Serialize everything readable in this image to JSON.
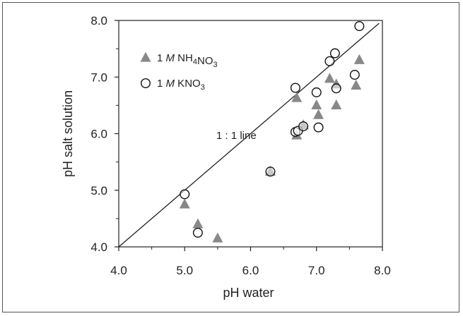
{
  "chart_data": {
    "type": "scatter",
    "xlabel": "pH water",
    "ylabel": "pH salt solution",
    "xlim": [
      4.0,
      8.0
    ],
    "ylim": [
      4.0,
      8.0
    ],
    "x_ticks": [
      "4.0",
      "5.0",
      "6.0",
      "7.0",
      "8.0"
    ],
    "y_ticks": [
      "4.0",
      "5.0",
      "6.0",
      "7.0",
      "8.0"
    ],
    "grid": false,
    "legend_placement": "top-left",
    "annotation": "1 : 1 line",
    "reference_line": {
      "label": "1 : 1 line",
      "from": [
        4.0,
        4.0
      ],
      "to": [
        7.95,
        7.95
      ]
    },
    "series": [
      {
        "name": "1 M NH4NO3",
        "legend": {
          "prefix": "1 ",
          "italic": "M",
          "parts": [
            {
              "t": " NH",
              "sub": false
            },
            {
              "t": "4",
              "sub": true
            },
            {
              "t": "NO",
              "sub": false
            },
            {
              "t": "3",
              "sub": true
            }
          ]
        },
        "marker": "triangle",
        "color": "#888888",
        "points": [
          [
            5.0,
            4.75
          ],
          [
            5.2,
            4.4
          ],
          [
            5.5,
            4.15
          ],
          [
            6.3,
            5.33
          ],
          [
            6.7,
            5.97
          ],
          [
            6.7,
            6.63
          ],
          [
            6.8,
            6.15
          ],
          [
            7.0,
            6.5
          ],
          [
            7.03,
            6.33
          ],
          [
            7.2,
            6.97
          ],
          [
            7.3,
            6.87
          ],
          [
            7.3,
            6.5
          ],
          [
            7.6,
            6.85
          ],
          [
            7.65,
            7.3
          ]
        ]
      },
      {
        "name": "1 M KNO3",
        "legend": {
          "prefix": "1 ",
          "italic": "M",
          "parts": [
            {
              "t": " KNO",
              "sub": false
            },
            {
              "t": "3",
              "sub": true
            }
          ]
        },
        "marker": "circle",
        "color": "#ffffff",
        "points": [
          [
            5.0,
            4.93
          ],
          [
            5.2,
            4.25
          ],
          [
            6.3,
            5.33
          ],
          [
            6.68,
            6.81
          ],
          [
            6.68,
            6.03
          ],
          [
            6.72,
            6.05
          ],
          [
            6.8,
            6.13
          ],
          [
            7.0,
            6.73
          ],
          [
            7.03,
            6.11
          ],
          [
            7.2,
            7.28
          ],
          [
            7.28,
            7.42
          ],
          [
            7.3,
            6.8
          ],
          [
            7.58,
            7.04
          ],
          [
            7.65,
            7.9
          ]
        ]
      }
    ]
  }
}
